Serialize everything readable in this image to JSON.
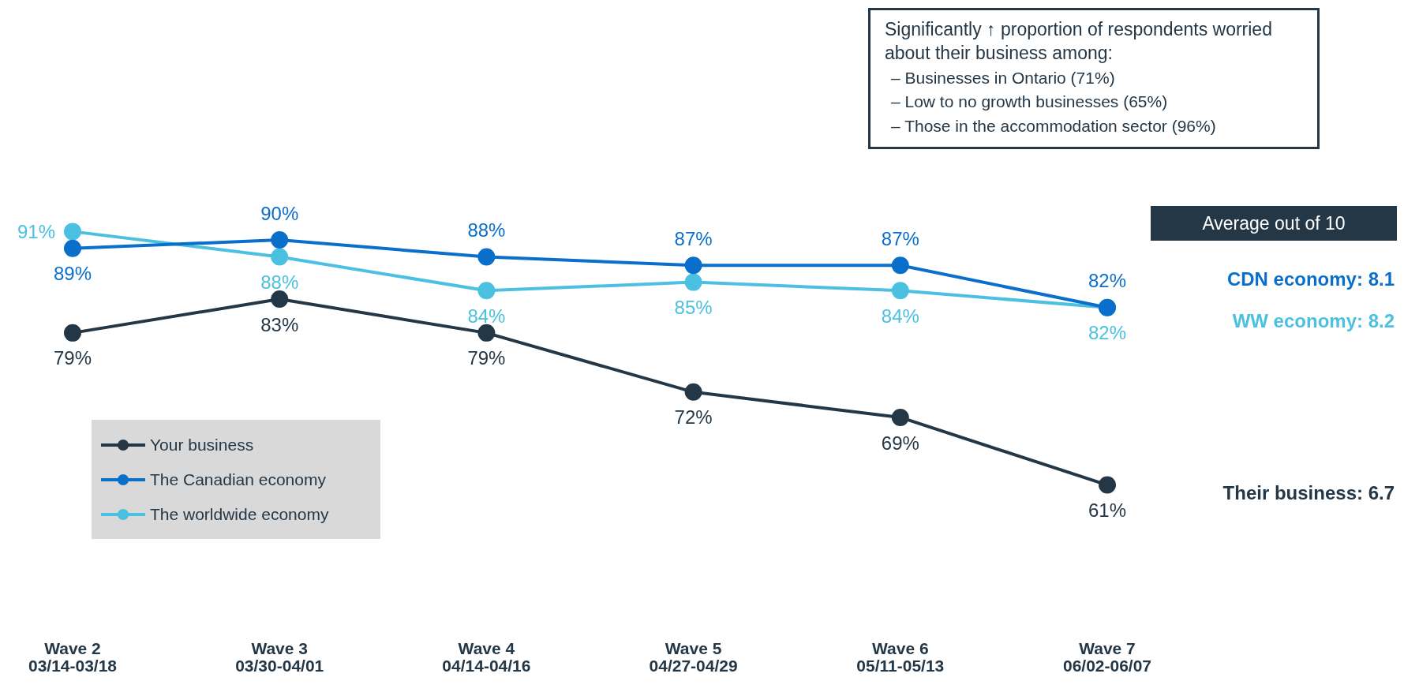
{
  "chart_data": {
    "type": "line",
    "categories": [
      "Wave 2\n03/14-03/18",
      "Wave 3\n03/30-04/01",
      "Wave 4\n04/14-04/16",
      "Wave 5\n04/27-04/29",
      "Wave 6\n05/11-05/13",
      "Wave 7\n06/02-06/07"
    ],
    "series": [
      {
        "name": "Your business",
        "color": "#243746",
        "values": [
          79,
          83,
          79,
          72,
          69,
          61
        ],
        "value_labels": [
          "79%",
          "83%",
          "79%",
          "72%",
          "69%",
          "61%"
        ]
      },
      {
        "name": "The Canadian economy",
        "color": "#0a6ecb",
        "values": [
          89,
          90,
          88,
          87,
          87,
          82
        ],
        "value_labels": [
          "89%",
          "90%",
          "88%",
          "87%",
          "87%",
          "82%"
        ]
      },
      {
        "name": "The worldwide economy",
        "color": "#4bc0e0",
        "values": [
          91,
          88,
          84,
          85,
          84,
          82
        ],
        "value_labels": [
          "91%",
          "88%",
          "84%",
          "85%",
          "84%",
          "82%"
        ]
      }
    ],
    "marker": "circle",
    "line_style": "solid",
    "grid": false,
    "legend": "bottom left",
    "annotations": [
      "Significantly ↑ proportion of respondents worried about their business among:",
      "– Businesses in Ontario (71%)",
      "– Low to no growth businesses (65%)",
      "– Those in the accommodation sector (96%)",
      "Average out of 10",
      "CDN economy: 8.1",
      "WW economy: 8.2",
      "Their business: 6.7"
    ]
  }
}
